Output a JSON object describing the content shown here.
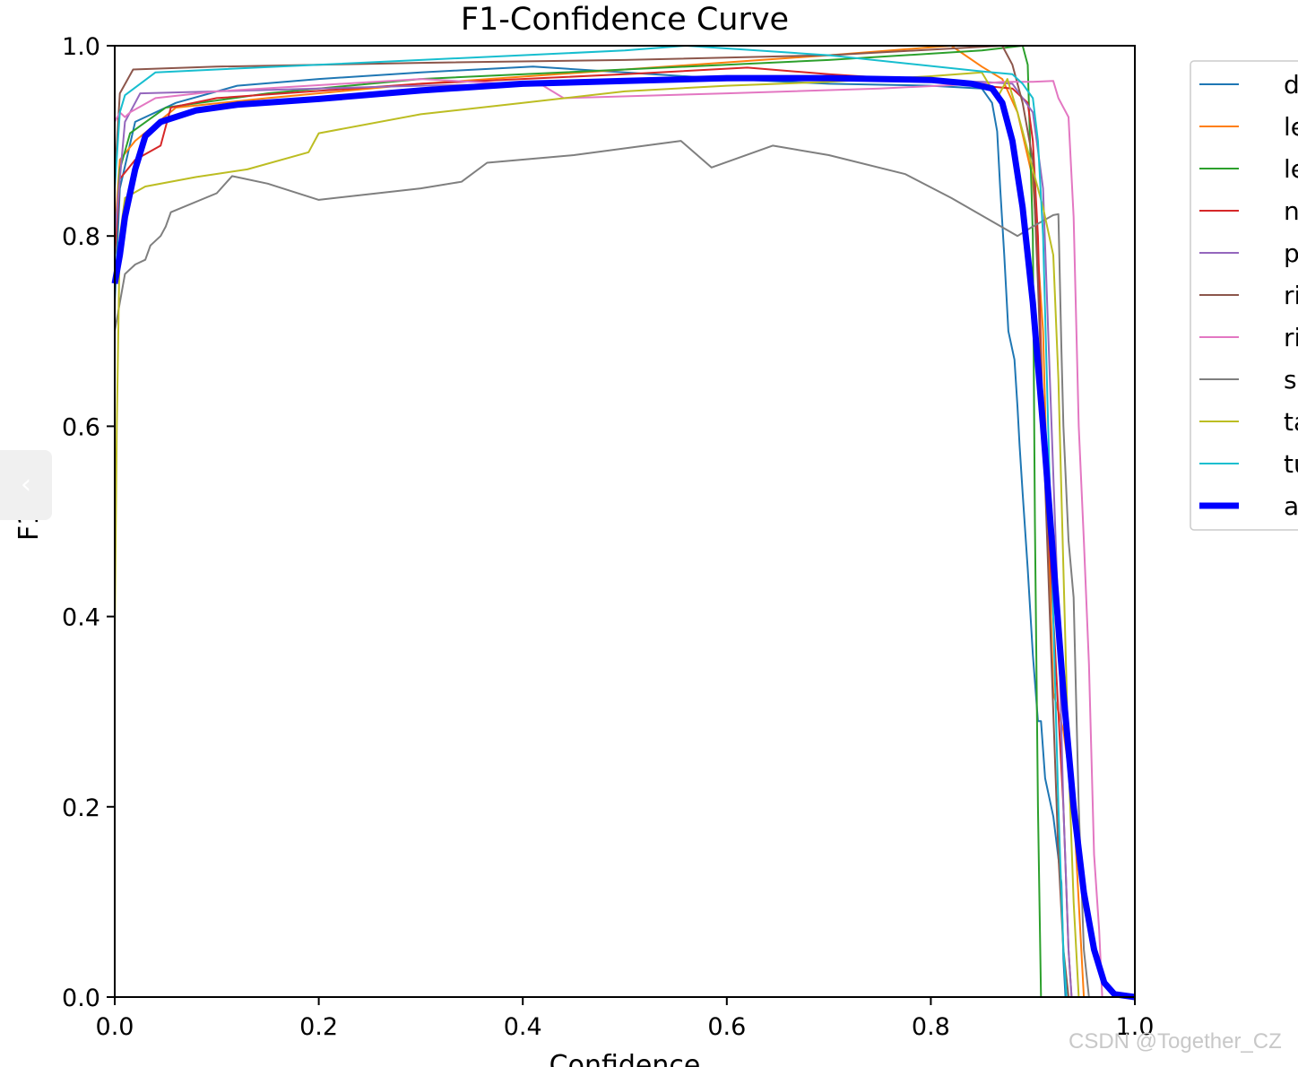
{
  "chart_data": {
    "type": "line",
    "title": "F1-Confidence Curve",
    "xlabel": "Confidence",
    "ylabel": "F1",
    "xlim": [
      0,
      1
    ],
    "ylim": [
      0,
      1
    ],
    "xticks": [
      "0.0",
      "0.2",
      "0.4",
      "0.6",
      "0.8",
      "1.0"
    ],
    "yticks": [
      "0.0",
      "0.2",
      "0.4",
      "0.6",
      "0.8",
      "1.0"
    ],
    "grid": false,
    "legend_position": "outside-right",
    "series": [
      {
        "name": "d",
        "color": "#1f77b4",
        "points": [
          [
            0,
            0.73
          ],
          [
            0.005,
            0.85
          ],
          [
            0.02,
            0.92
          ],
          [
            0.06,
            0.94
          ],
          [
            0.12,
            0.958
          ],
          [
            0.2,
            0.965
          ],
          [
            0.3,
            0.972
          ],
          [
            0.41,
            0.978
          ],
          [
            0.5,
            0.972
          ],
          [
            0.6,
            0.965
          ],
          [
            0.7,
            0.96
          ],
          [
            0.8,
            0.958
          ],
          [
            0.85,
            0.955
          ],
          [
            0.86,
            0.94
          ],
          [
            0.865,
            0.91
          ],
          [
            0.868,
            0.85
          ],
          [
            0.872,
            0.78
          ],
          [
            0.876,
            0.7
          ],
          [
            0.882,
            0.67
          ],
          [
            0.885,
            0.62
          ],
          [
            0.887,
            0.58
          ],
          [
            0.89,
            0.53
          ],
          [
            0.895,
            0.45
          ],
          [
            0.9,
            0.36
          ],
          [
            0.905,
            0.29
          ],
          [
            0.908,
            0.29
          ],
          [
            0.912,
            0.23
          ],
          [
            0.92,
            0.19
          ],
          [
            0.928,
            0.12
          ],
          [
            0.93,
            0.04
          ],
          [
            0.932,
            0.0
          ]
        ]
      },
      {
        "name": "le",
        "color": "#ff7f0e",
        "points": [
          [
            0,
            0.8
          ],
          [
            0.005,
            0.88
          ],
          [
            0.02,
            0.9
          ],
          [
            0.06,
            0.935
          ],
          [
            0.15,
            0.945
          ],
          [
            0.3,
            0.96
          ],
          [
            0.5,
            0.975
          ],
          [
            0.7,
            0.99
          ],
          [
            0.82,
            1.0
          ],
          [
            0.85,
            0.978
          ],
          [
            0.87,
            0.965
          ],
          [
            0.885,
            0.93
          ],
          [
            0.9,
            0.86
          ],
          [
            0.91,
            0.7
          ],
          [
            0.915,
            0.5
          ],
          [
            0.92,
            0.32
          ],
          [
            0.93,
            0.28
          ],
          [
            0.94,
            0.2
          ],
          [
            0.945,
            0.1
          ],
          [
            0.95,
            0.0
          ]
        ]
      },
      {
        "name": "le",
        "color": "#2ca02c",
        "points": [
          [
            0,
            0.78
          ],
          [
            0.005,
            0.87
          ],
          [
            0.015,
            0.908
          ],
          [
            0.05,
            0.935
          ],
          [
            0.15,
            0.95
          ],
          [
            0.3,
            0.965
          ],
          [
            0.5,
            0.975
          ],
          [
            0.7,
            0.985
          ],
          [
            0.85,
            0.995
          ],
          [
            0.89,
            1.0
          ],
          [
            0.895,
            0.98
          ],
          [
            0.9,
            0.8
          ],
          [
            0.902,
            0.5
          ],
          [
            0.905,
            0.2
          ],
          [
            0.908,
            0.0
          ]
        ]
      },
      {
        "name": "n",
        "color": "#d62728",
        "points": [
          [
            0,
            0.78
          ],
          [
            0.005,
            0.86
          ],
          [
            0.02,
            0.88
          ],
          [
            0.045,
            0.895
          ],
          [
            0.055,
            0.935
          ],
          [
            0.1,
            0.945
          ],
          [
            0.3,
            0.96
          ],
          [
            0.5,
            0.97
          ],
          [
            0.62,
            0.977
          ],
          [
            0.7,
            0.97
          ],
          [
            0.8,
            0.963
          ],
          [
            0.88,
            0.955
          ],
          [
            0.895,
            0.94
          ],
          [
            0.9,
            0.9
          ],
          [
            0.905,
            0.8
          ],
          [
            0.91,
            0.6
          ],
          [
            0.92,
            0.4
          ],
          [
            0.93,
            0.2
          ],
          [
            0.935,
            0.05
          ],
          [
            0.938,
            0.0
          ]
        ]
      },
      {
        "name": "p",
        "color": "#9467bd",
        "points": [
          [
            0,
            0.8
          ],
          [
            0.01,
            0.92
          ],
          [
            0.025,
            0.95
          ],
          [
            0.1,
            0.952
          ],
          [
            0.3,
            0.958
          ],
          [
            0.5,
            0.962
          ],
          [
            0.7,
            0.965
          ],
          [
            0.85,
            0.962
          ],
          [
            0.88,
            0.96
          ],
          [
            0.9,
            0.93
          ],
          [
            0.91,
            0.85
          ],
          [
            0.915,
            0.7
          ],
          [
            0.92,
            0.55
          ],
          [
            0.925,
            0.4
          ],
          [
            0.93,
            0.2
          ],
          [
            0.935,
            0.05
          ],
          [
            0.938,
            0.0
          ]
        ]
      },
      {
        "name": "ri",
        "color": "#8c564b",
        "points": [
          [
            0,
            0.86
          ],
          [
            0.005,
            0.95
          ],
          [
            0.018,
            0.975
          ],
          [
            0.1,
            0.978
          ],
          [
            0.3,
            0.982
          ],
          [
            0.5,
            0.985
          ],
          [
            0.7,
            0.99
          ],
          [
            0.87,
            1.0
          ],
          [
            0.88,
            0.98
          ],
          [
            0.89,
            0.94
          ],
          [
            0.9,
            0.88
          ],
          [
            0.905,
            0.75
          ],
          [
            0.91,
            0.6
          ],
          [
            0.915,
            0.45
          ],
          [
            0.92,
            0.3
          ],
          [
            0.925,
            0.15
          ],
          [
            0.93,
            0.05
          ],
          [
            0.935,
            0.0
          ]
        ]
      },
      {
        "name": "ri",
        "color": "#e377c2",
        "points": [
          [
            0,
            0.92
          ],
          [
            0.005,
            0.93
          ],
          [
            0.01,
            0.925
          ],
          [
            0.015,
            0.93
          ],
          [
            0.04,
            0.945
          ],
          [
            0.1,
            0.952
          ],
          [
            0.3,
            0.965
          ],
          [
            0.42,
            0.958
          ],
          [
            0.44,
            0.945
          ],
          [
            0.6,
            0.95
          ],
          [
            0.75,
            0.955
          ],
          [
            0.85,
            0.96
          ],
          [
            0.87,
            0.962
          ],
          [
            0.9,
            0.962
          ],
          [
            0.92,
            0.963
          ],
          [
            0.925,
            0.945
          ],
          [
            0.935,
            0.925
          ],
          [
            0.94,
            0.82
          ],
          [
            0.945,
            0.6
          ],
          [
            0.95,
            0.48
          ],
          [
            0.955,
            0.35
          ],
          [
            0.96,
            0.15
          ],
          [
            0.965,
            0.07
          ],
          [
            0.968,
            0.0
          ]
        ]
      },
      {
        "name": "s",
        "color": "#7f7f7f",
        "points": [
          [
            0,
            0.7
          ],
          [
            0.005,
            0.73
          ],
          [
            0.01,
            0.76
          ],
          [
            0.02,
            0.77
          ],
          [
            0.03,
            0.775
          ],
          [
            0.035,
            0.79
          ],
          [
            0.045,
            0.8
          ],
          [
            0.05,
            0.81
          ],
          [
            0.055,
            0.825
          ],
          [
            0.1,
            0.845
          ],
          [
            0.115,
            0.863
          ],
          [
            0.15,
            0.855
          ],
          [
            0.2,
            0.838
          ],
          [
            0.3,
            0.85
          ],
          [
            0.34,
            0.857
          ],
          [
            0.365,
            0.877
          ],
          [
            0.45,
            0.885
          ],
          [
            0.555,
            0.9
          ],
          [
            0.585,
            0.872
          ],
          [
            0.645,
            0.895
          ],
          [
            0.7,
            0.885
          ],
          [
            0.775,
            0.865
          ],
          [
            0.82,
            0.84
          ],
          [
            0.885,
            0.8
          ],
          [
            0.9,
            0.81
          ],
          [
            0.92,
            0.822
          ],
          [
            0.925,
            0.823
          ],
          [
            0.928,
            0.68
          ],
          [
            0.93,
            0.6
          ],
          [
            0.935,
            0.48
          ],
          [
            0.94,
            0.42
          ],
          [
            0.945,
            0.2
          ],
          [
            0.95,
            0.05
          ],
          [
            0.955,
            0.0
          ]
        ]
      },
      {
        "name": "ta",
        "color": "#bcbd22",
        "points": [
          [
            0,
            0.38
          ],
          [
            0.002,
            0.6
          ],
          [
            0.005,
            0.8
          ],
          [
            0.01,
            0.84
          ],
          [
            0.03,
            0.852
          ],
          [
            0.08,
            0.862
          ],
          [
            0.13,
            0.87
          ],
          [
            0.19,
            0.888
          ],
          [
            0.2,
            0.908
          ],
          [
            0.3,
            0.928
          ],
          [
            0.4,
            0.94
          ],
          [
            0.5,
            0.952
          ],
          [
            0.6,
            0.958
          ],
          [
            0.7,
            0.962
          ],
          [
            0.8,
            0.968
          ],
          [
            0.85,
            0.972
          ],
          [
            0.865,
            0.945
          ],
          [
            0.875,
            0.965
          ],
          [
            0.885,
            0.93
          ],
          [
            0.9,
            0.87
          ],
          [
            0.91,
            0.83
          ],
          [
            0.92,
            0.78
          ],
          [
            0.925,
            0.65
          ],
          [
            0.93,
            0.45
          ],
          [
            0.935,
            0.25
          ],
          [
            0.94,
            0.1
          ],
          [
            0.945,
            0.0
          ]
        ]
      },
      {
        "name": "tu",
        "color": "#17becf",
        "points": [
          [
            0,
            0.85
          ],
          [
            0.005,
            0.93
          ],
          [
            0.01,
            0.948
          ],
          [
            0.04,
            0.972
          ],
          [
            0.1,
            0.975
          ],
          [
            0.3,
            0.985
          ],
          [
            0.5,
            0.995
          ],
          [
            0.56,
            1.0
          ],
          [
            0.7,
            0.99
          ],
          [
            0.85,
            0.973
          ],
          [
            0.88,
            0.97
          ],
          [
            0.89,
            0.96
          ],
          [
            0.9,
            0.945
          ],
          [
            0.905,
            0.9
          ],
          [
            0.91,
            0.8
          ],
          [
            0.915,
            0.6
          ],
          [
            0.92,
            0.4
          ],
          [
            0.925,
            0.2
          ],
          [
            0.93,
            0.05
          ],
          [
            0.933,
            0.0
          ]
        ]
      },
      {
        "name": "a",
        "color": "#0000ff",
        "width": 7,
        "points": [
          [
            0,
            0.75
          ],
          [
            0.005,
            0.78
          ],
          [
            0.01,
            0.82
          ],
          [
            0.02,
            0.87
          ],
          [
            0.03,
            0.905
          ],
          [
            0.045,
            0.92
          ],
          [
            0.08,
            0.932
          ],
          [
            0.12,
            0.938
          ],
          [
            0.2,
            0.944
          ],
          [
            0.3,
            0.953
          ],
          [
            0.4,
            0.96
          ],
          [
            0.5,
            0.963
          ],
          [
            0.6,
            0.966
          ],
          [
            0.7,
            0.966
          ],
          [
            0.8,
            0.964
          ],
          [
            0.84,
            0.96
          ],
          [
            0.86,
            0.955
          ],
          [
            0.87,
            0.94
          ],
          [
            0.88,
            0.9
          ],
          [
            0.89,
            0.83
          ],
          [
            0.9,
            0.73
          ],
          [
            0.91,
            0.6
          ],
          [
            0.92,
            0.46
          ],
          [
            0.93,
            0.32
          ],
          [
            0.94,
            0.2
          ],
          [
            0.95,
            0.11
          ],
          [
            0.96,
            0.05
          ],
          [
            0.97,
            0.015
          ],
          [
            0.98,
            0.003
          ],
          [
            1.0,
            0.0
          ]
        ]
      }
    ]
  },
  "watermark": "CSDN @Together_CZ",
  "nav": {
    "prev_glyph": "‹"
  }
}
